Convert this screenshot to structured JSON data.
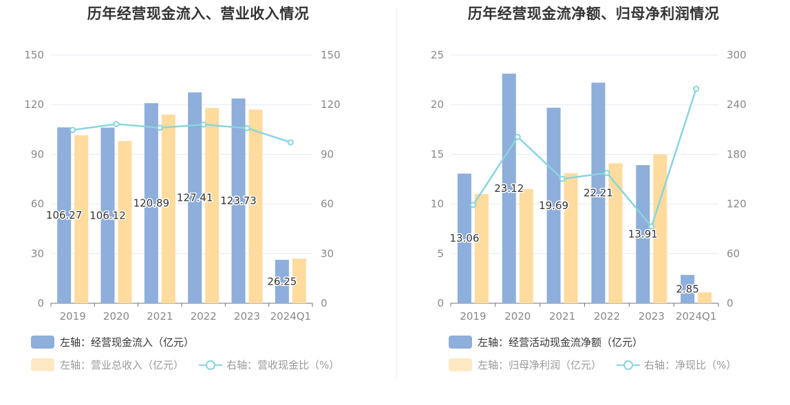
{
  "colors": {
    "blue": "#8eaedb",
    "orange": "#ffdb9e",
    "line": "#88d5dc",
    "grid": "#e6e9f2"
  },
  "chart_data": [
    {
      "type": "bar",
      "title": "历年经营现金流入、营业收入情况",
      "categories": [
        "2019",
        "2020",
        "2021",
        "2022",
        "2023",
        "2024Q1"
      ],
      "y_left": {
        "ticks": [
          "0",
          "30",
          "60",
          "90",
          "120",
          "150"
        ],
        "lim": [
          0,
          150
        ]
      },
      "y_right": {
        "ticks": [
          "0",
          "30",
          "60",
          "90",
          "120",
          "150"
        ],
        "lim": [
          0,
          150
        ]
      },
      "series": [
        {
          "name": "左轴：经营现金流入（亿元）",
          "axis": "left",
          "kind": "bar",
          "values": [
            106.27,
            106.12,
            120.89,
            127.41,
            123.73,
            26.25
          ],
          "labels": [
            "106.27",
            "106.12",
            "120.89",
            "127.41",
            "123.73",
            "26.25"
          ]
        },
        {
          "name": "左轴：营业总收入（亿元）",
          "axis": "left",
          "kind": "bar",
          "values": [
            101.5,
            98.0,
            114.0,
            118.0,
            117.0,
            27.0
          ]
        },
        {
          "name": "右轴：营收现金比（%）",
          "axis": "right",
          "kind": "line",
          "values": [
            104.7,
            108.3,
            106.0,
            108.0,
            105.8,
            97.2
          ]
        }
      ]
    },
    {
      "type": "bar",
      "title": "历年经营现金流净额、归母净利润情况",
      "categories": [
        "2019",
        "2020",
        "2021",
        "2022",
        "2023",
        "2024Q1"
      ],
      "y_left": {
        "ticks": [
          "0",
          "5",
          "10",
          "15",
          "20",
          "25"
        ],
        "lim": [
          0,
          25
        ]
      },
      "y_right": {
        "ticks": [
          "0",
          "60",
          "120",
          "180",
          "240",
          "300"
        ],
        "lim": [
          0,
          300
        ]
      },
      "series": [
        {
          "name": "左轴：经营活动现金流净额（亿元）",
          "axis": "left",
          "kind": "bar",
          "values": [
            13.06,
            23.12,
            19.69,
            22.21,
            13.91,
            2.85
          ],
          "labels": [
            "13.06",
            "23.12",
            "19.69",
            "22.21",
            "13.91",
            "2.85"
          ]
        },
        {
          "name": "左轴：归母净利润（亿元）",
          "axis": "left",
          "kind": "bar",
          "values": [
            11.0,
            11.5,
            13.1,
            14.1,
            15.0,
            1.1
          ]
        },
        {
          "name": "右轴：净现比（%）",
          "axis": "right",
          "kind": "line",
          "values": [
            118.7,
            201.0,
            150.3,
            157.5,
            92.7,
            259.1
          ]
        }
      ]
    }
  ]
}
